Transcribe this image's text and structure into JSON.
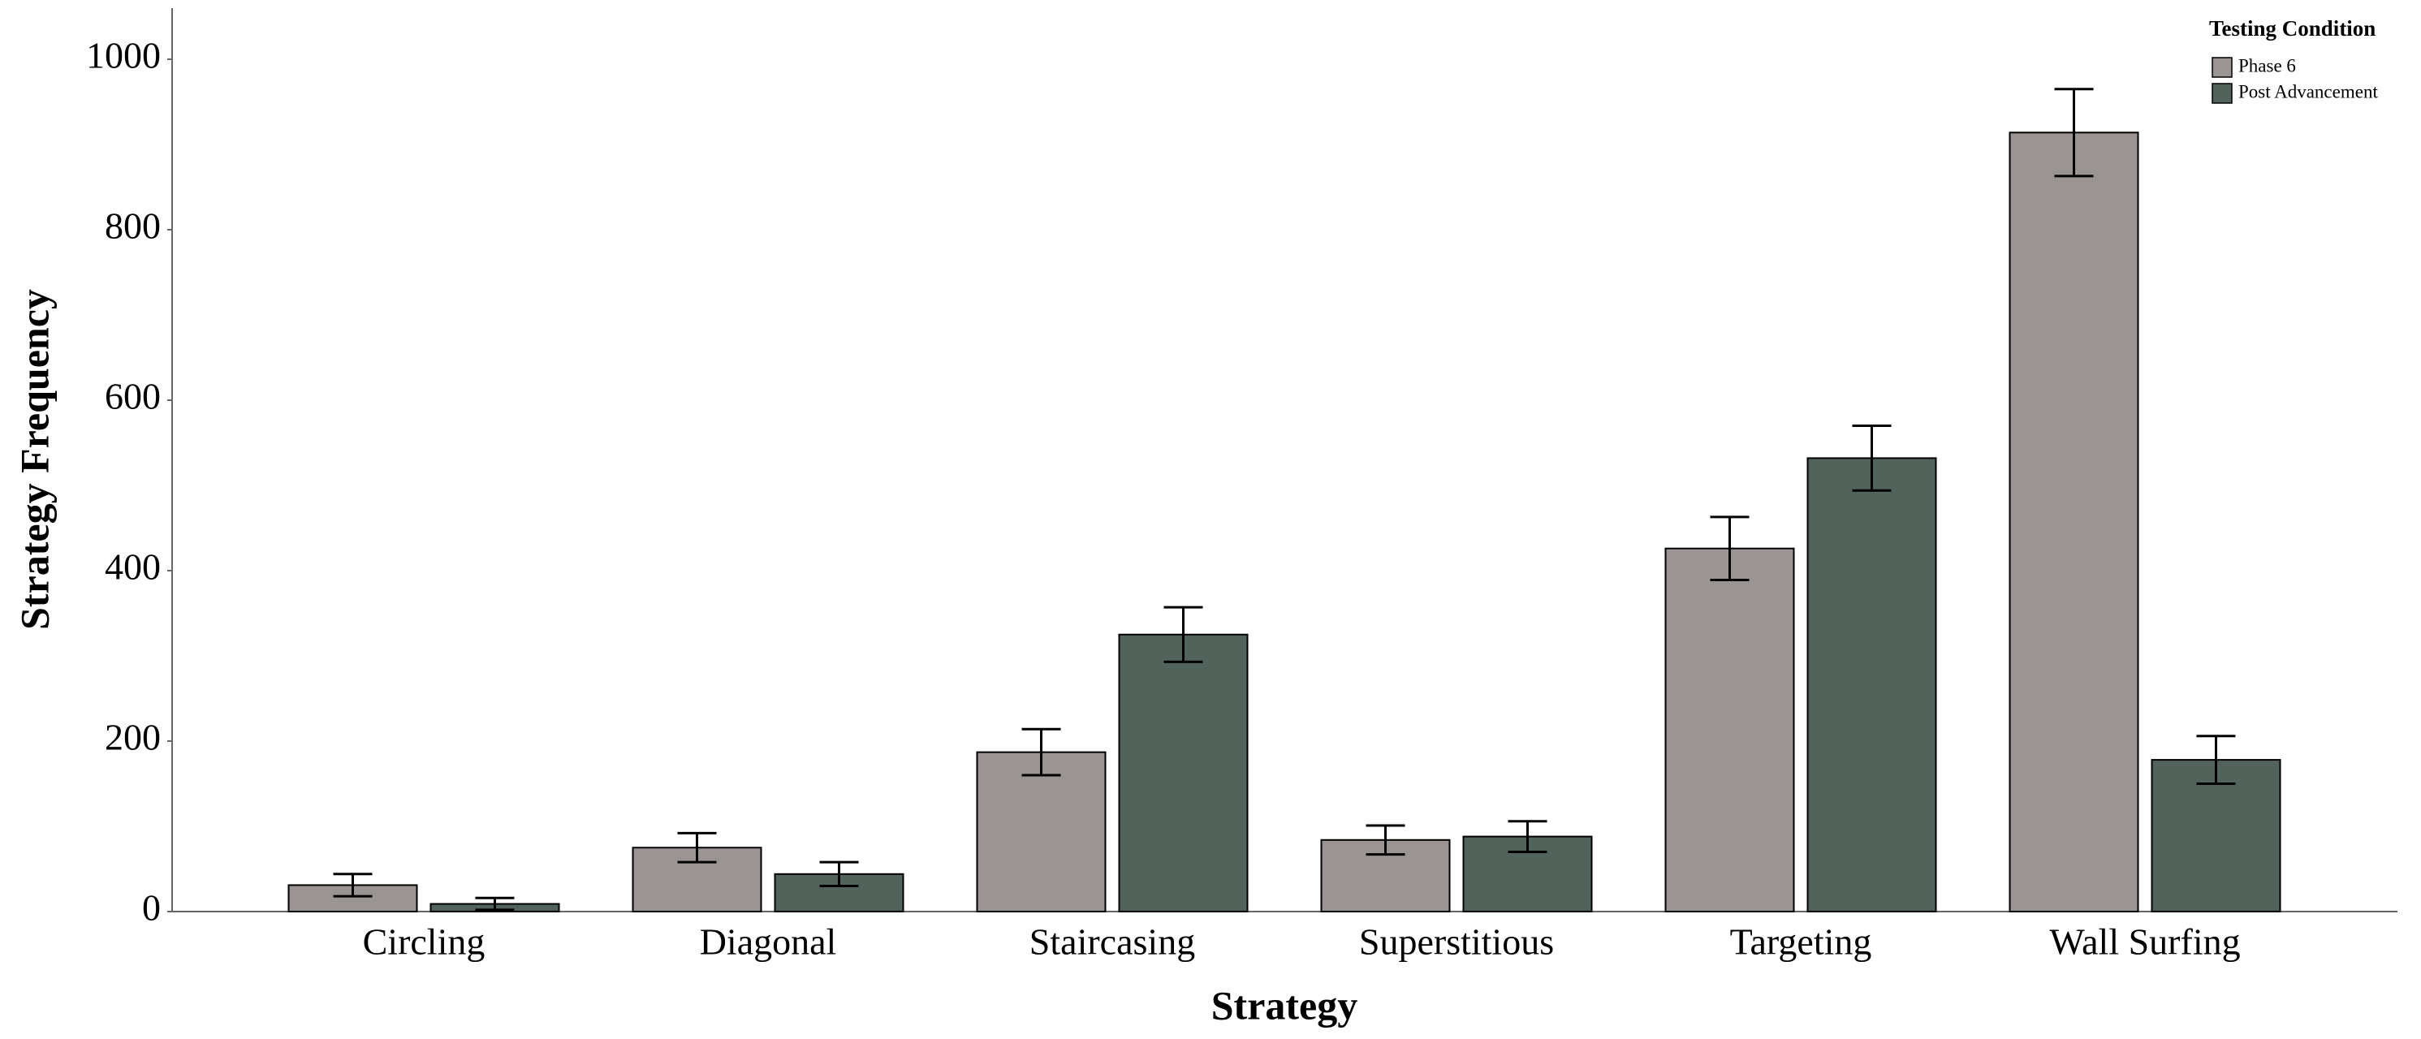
{
  "chart_data": {
    "type": "bar",
    "x_label": "Strategy",
    "y_label": "Strategy Frequency",
    "legend_title": "Testing Condition",
    "legend": "top-right",
    "categories": [
      "Circling",
      "Diagonal",
      "Staircasing",
      "Superstitious",
      "Targeting",
      "Wall Surfing"
    ],
    "series": [
      {
        "name": "Phase 6",
        "color": "#9a9592",
        "values": [
          31,
          75,
          187,
          84,
          426,
          914
        ],
        "errors": [
          13,
          17,
          27,
          17,
          37,
          51
        ]
      },
      {
        "name": "Post Advancement",
        "color": "#52635b",
        "values": [
          9,
          44,
          325,
          88,
          532,
          178
        ],
        "errors": [
          7,
          14,
          32,
          18,
          38,
          28
        ]
      }
    ],
    "ylim": [
      0,
      1060
    ],
    "yticks": [
      0,
      200,
      400,
      600,
      800,
      1000
    ]
  }
}
